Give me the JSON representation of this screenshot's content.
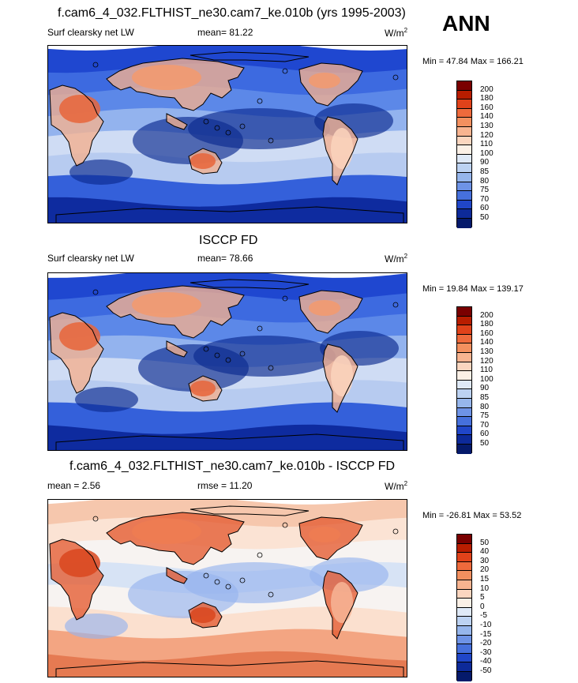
{
  "season": "ANN",
  "panels": [
    {
      "title": "f.cam6_4_032.FLTHIST_ne30.cam7_ke.010b (yrs 1995-2003)",
      "left_label": "Surf clearsky net LW",
      "stat_label": "mean=  81.22",
      "units": "W/m",
      "units_sup": "2",
      "minmax": "Min =  47.84 Max = 166.21",
      "levels": [
        "200",
        "180",
        "160",
        "140",
        "130",
        "120",
        "110",
        "100",
        "90",
        "85",
        "80",
        "75",
        "70",
        "60",
        "50"
      ],
      "palette": "abs"
    },
    {
      "title": "ISCCP FD",
      "left_label": "Surf clearsky net LW",
      "stat_label": "mean=  78.66",
      "units": "W/m",
      "units_sup": "2",
      "minmax": "Min =  19.84 Max = 139.17",
      "levels": [
        "200",
        "180",
        "160",
        "140",
        "130",
        "120",
        "110",
        "100",
        "90",
        "85",
        "80",
        "75",
        "70",
        "60",
        "50"
      ],
      "palette": "abs"
    },
    {
      "title": "f.cam6_4_032.FLTHIST_ne30.cam7_ke.010b - ISCCP FD",
      "left_label": "mean =   2.56",
      "stat_label": "rmse =  11.20",
      "units": "W/m",
      "units_sup": "2",
      "minmax": "Min = -26.81 Max =  53.52",
      "levels": [
        "50",
        "40",
        "30",
        "20",
        "15",
        "10",
        "5",
        "0",
        "-5",
        "-10",
        "-15",
        "-20",
        "-30",
        "-40",
        "-50"
      ],
      "palette": "diff"
    }
  ],
  "colors": {
    "colorbar": [
      "#7a0000",
      "#b81d00",
      "#e0421a",
      "#ee6a3c",
      "#f3905f",
      "#f8b490",
      "#fbd6bf",
      "#fbf0e6",
      "#dfe9f7",
      "#bcd2f2",
      "#96b6ec",
      "#6e93e6",
      "#4670dc",
      "#2046c8",
      "#0d2a99",
      "#051a6b"
    ],
    "land_outline": "#000000"
  }
}
